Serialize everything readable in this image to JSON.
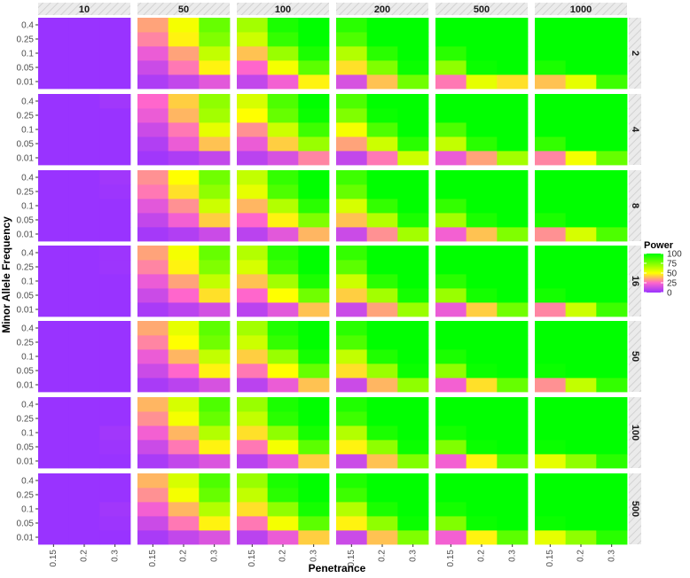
{
  "chart_data": {
    "type": "heatmap",
    "xlabel": "Penetrance",
    "ylabel": "Minor Allele Frequency",
    "x_categories": [
      "0.15",
      "0.2",
      "0.3"
    ],
    "y_categories": [
      "0.01",
      "0.05",
      "0.1",
      "0.25",
      "0.4"
    ],
    "column_facets": [
      "10",
      "50",
      "100",
      "200",
      "500",
      "1000"
    ],
    "row_facets": [
      "2",
      "4",
      "8",
      "16",
      "50",
      "100",
      "500"
    ],
    "legend": {
      "title": "Power",
      "ticks": [
        "0",
        "25",
        "50",
        "75",
        "100"
      ],
      "range": [
        0,
        100
      ],
      "colors": [
        "#9933ff",
        "#ff66cc",
        "#ffff00",
        "#00ff00"
      ],
      "position": "right"
    },
    "panels": [
      [
        [
          [
            0,
            0,
            0
          ],
          [
            0,
            0,
            0
          ],
          [
            0,
            0,
            0
          ],
          [
            0,
            0,
            0
          ],
          [
            0,
            0,
            0
          ]
        ],
        [
          [
            5,
            10,
            18
          ],
          [
            12,
            28,
            48
          ],
          [
            20,
            35,
            62
          ],
          [
            30,
            48,
            75
          ],
          [
            35,
            52,
            80
          ]
        ],
        [
          [
            10,
            22,
            48
          ],
          [
            25,
            52,
            82
          ],
          [
            40,
            70,
            95
          ],
          [
            60,
            90,
            100
          ],
          [
            68,
            95,
            100
          ]
        ],
        [
          [
            15,
            40,
            78
          ],
          [
            45,
            75,
            98
          ],
          [
            65,
            92,
            100
          ],
          [
            85,
            100,
            100
          ],
          [
            92,
            100,
            100
          ]
        ],
        [
          [
            28,
            55,
            45
          ],
          [
            72,
            98,
            100
          ],
          [
            92,
            100,
            100
          ],
          [
            100,
            100,
            100
          ],
          [
            100,
            100,
            100
          ]
        ],
        [
          [
            40,
            55,
            88
          ],
          [
            95,
            100,
            100
          ],
          [
            100,
            100,
            100
          ],
          [
            100,
            100,
            100
          ],
          [
            100,
            100,
            100
          ]
        ]
      ],
      [
        [
          [
            0,
            0,
            0
          ],
          [
            0,
            0,
            0
          ],
          [
            0,
            0,
            0
          ],
          [
            0,
            0,
            0
          ],
          [
            0,
            0,
            2
          ]
        ],
        [
          [
            2,
            5,
            10
          ],
          [
            6,
            20,
            40
          ],
          [
            12,
            28,
            55
          ],
          [
            20,
            38,
            68
          ],
          [
            25,
            42,
            72
          ]
        ],
        [
          [
            8,
            15,
            30
          ],
          [
            20,
            42,
            70
          ],
          [
            32,
            60,
            88
          ],
          [
            50,
            80,
            98
          ],
          [
            58,
            85,
            100
          ]
        ],
        [
          [
            10,
            28,
            60
          ],
          [
            35,
            60,
            92
          ],
          [
            52,
            85,
            100
          ],
          [
            75,
            98,
            100
          ],
          [
            85,
            100,
            100
          ]
        ],
        [
          [
            20,
            35,
            68
          ],
          [
            62,
            92,
            100
          ],
          [
            85,
            100,
            100
          ],
          [
            100,
            100,
            100
          ],
          [
            100,
            100,
            100
          ]
        ],
        [
          [
            30,
            52,
            80
          ],
          [
            90,
            100,
            100
          ],
          [
            100,
            100,
            100
          ],
          [
            100,
            100,
            100
          ],
          [
            100,
            100,
            100
          ]
        ]
      ],
      [
        [
          [
            0,
            0,
            0
          ],
          [
            0,
            0,
            0
          ],
          [
            0,
            0,
            0
          ],
          [
            0,
            0,
            1
          ],
          [
            0,
            0,
            2
          ]
        ],
        [
          [
            3,
            6,
            12
          ],
          [
            10,
            22,
            42
          ],
          [
            18,
            32,
            60
          ],
          [
            28,
            45,
            72
          ],
          [
            32,
            50,
            78
          ]
        ],
        [
          [
            8,
            18,
            38
          ],
          [
            25,
            48,
            75
          ],
          [
            38,
            65,
            92
          ],
          [
            55,
            85,
            100
          ],
          [
            62,
            90,
            100
          ]
        ],
        [
          [
            12,
            32,
            68
          ],
          [
            40,
            65,
            95
          ],
          [
            58,
            90,
            100
          ],
          [
            80,
            100,
            100
          ],
          [
            88,
            100,
            100
          ]
        ],
        [
          [
            22,
            40,
            75
          ],
          [
            68,
            95,
            100
          ],
          [
            90,
            100,
            100
          ],
          [
            100,
            100,
            100
          ],
          [
            100,
            100,
            100
          ]
        ],
        [
          [
            32,
            58,
            85
          ],
          [
            95,
            100,
            100
          ],
          [
            100,
            100,
            100
          ],
          [
            100,
            100,
            100
          ],
          [
            100,
            100,
            100
          ]
        ]
      ],
      [
        [
          [
            0,
            0,
            0
          ],
          [
            0,
            0,
            0
          ],
          [
            0,
            0,
            0
          ],
          [
            0,
            0,
            1
          ],
          [
            0,
            0,
            1
          ]
        ],
        [
          [
            4,
            8,
            14
          ],
          [
            12,
            25,
            45
          ],
          [
            20,
            35,
            62
          ],
          [
            30,
            48,
            75
          ],
          [
            35,
            52,
            80
          ]
        ],
        [
          [
            8,
            18,
            40
          ],
          [
            25,
            50,
            78
          ],
          [
            40,
            68,
            95
          ],
          [
            58,
            88,
            100
          ],
          [
            65,
            92,
            100
          ]
        ],
        [
          [
            12,
            35,
            70
          ],
          [
            42,
            68,
            96
          ],
          [
            60,
            92,
            100
          ],
          [
            82,
            100,
            100
          ],
          [
            90,
            100,
            100
          ]
        ],
        [
          [
            20,
            42,
            78
          ],
          [
            70,
            96,
            100
          ],
          [
            92,
            100,
            100
          ],
          [
            100,
            100,
            100
          ],
          [
            100,
            100,
            100
          ]
        ],
        [
          [
            30,
            60,
            88
          ],
          [
            96,
            100,
            100
          ],
          [
            100,
            100,
            100
          ],
          [
            100,
            100,
            100
          ],
          [
            100,
            100,
            100
          ]
        ]
      ],
      [
        [
          [
            0,
            0,
            0
          ],
          [
            0,
            0,
            0
          ],
          [
            0,
            0,
            0
          ],
          [
            0,
            0,
            0
          ],
          [
            0,
            0,
            0
          ]
        ],
        [
          [
            4,
            8,
            15
          ],
          [
            12,
            25,
            48
          ],
          [
            20,
            38,
            62
          ],
          [
            30,
            50,
            78
          ],
          [
            36,
            55,
            82
          ]
        ],
        [
          [
            8,
            20,
            40
          ],
          [
            28,
            50,
            80
          ],
          [
            42,
            70,
            96
          ],
          [
            60,
            90,
            100
          ],
          [
            68,
            94,
            100
          ]
        ],
        [
          [
            12,
            38,
            72
          ],
          [
            45,
            70,
            98
          ],
          [
            62,
            94,
            100
          ],
          [
            85,
            100,
            100
          ],
          [
            92,
            100,
            100
          ]
        ],
        [
          [
            22,
            45,
            80
          ],
          [
            72,
            98,
            100
          ],
          [
            95,
            100,
            100
          ],
          [
            100,
            100,
            100
          ],
          [
            100,
            100,
            100
          ]
        ],
        [
          [
            32,
            62,
            90
          ],
          [
            98,
            100,
            100
          ],
          [
            100,
            100,
            100
          ],
          [
            100,
            100,
            100
          ],
          [
            100,
            100,
            100
          ]
        ]
      ],
      [
        [
          [
            0,
            0,
            0
          ],
          [
            0,
            0,
            1
          ],
          [
            0,
            0,
            2
          ],
          [
            0,
            0,
            0
          ],
          [
            0,
            0,
            0
          ]
        ],
        [
          [
            4,
            10,
            16
          ],
          [
            12,
            28,
            48
          ],
          [
            22,
            38,
            65
          ],
          [
            32,
            52,
            80
          ],
          [
            38,
            58,
            85
          ]
        ],
        [
          [
            8,
            20,
            42
          ],
          [
            28,
            52,
            82
          ],
          [
            45,
            72,
            96
          ],
          [
            62,
            92,
            100
          ],
          [
            70,
            95,
            100
          ]
        ],
        [
          [
            12,
            40,
            75
          ],
          [
            48,
            72,
            98
          ],
          [
            65,
            95,
            100
          ],
          [
            88,
            100,
            100
          ],
          [
            94,
            100,
            100
          ]
        ],
        [
          [
            22,
            48,
            82
          ],
          [
            75,
            98,
            100
          ],
          [
            96,
            100,
            100
          ],
          [
            100,
            100,
            100
          ],
          [
            100,
            100,
            100
          ]
        ],
        [
          [
            55,
            72,
            92
          ],
          [
            98,
            100,
            100
          ],
          [
            100,
            100,
            100
          ],
          [
            100,
            100,
            100
          ],
          [
            100,
            100,
            100
          ]
        ]
      ],
      [
        [
          [
            0,
            0,
            0
          ],
          [
            0,
            0,
            1
          ],
          [
            0,
            0,
            2
          ],
          [
            0,
            0,
            0
          ],
          [
            0,
            0,
            0
          ]
        ],
        [
          [
            4,
            10,
            16
          ],
          [
            12,
            28,
            48
          ],
          [
            22,
            38,
            65
          ],
          [
            32,
            52,
            80
          ],
          [
            38,
            58,
            85
          ]
        ],
        [
          [
            8,
            20,
            42
          ],
          [
            28,
            52,
            82
          ],
          [
            45,
            72,
            96
          ],
          [
            62,
            92,
            100
          ],
          [
            70,
            95,
            100
          ]
        ],
        [
          [
            12,
            40,
            75
          ],
          [
            48,
            72,
            98
          ],
          [
            65,
            95,
            100
          ],
          [
            88,
            100,
            100
          ],
          [
            94,
            100,
            100
          ]
        ],
        [
          [
            22,
            48,
            82
          ],
          [
            75,
            98,
            100
          ],
          [
            96,
            100,
            100
          ],
          [
            100,
            100,
            100
          ],
          [
            100,
            100,
            100
          ]
        ],
        [
          [
            55,
            72,
            92
          ],
          [
            98,
            100,
            100
          ],
          [
            100,
            100,
            100
          ],
          [
            100,
            100,
            100
          ],
          [
            100,
            100,
            100
          ]
        ]
      ]
    ]
  }
}
